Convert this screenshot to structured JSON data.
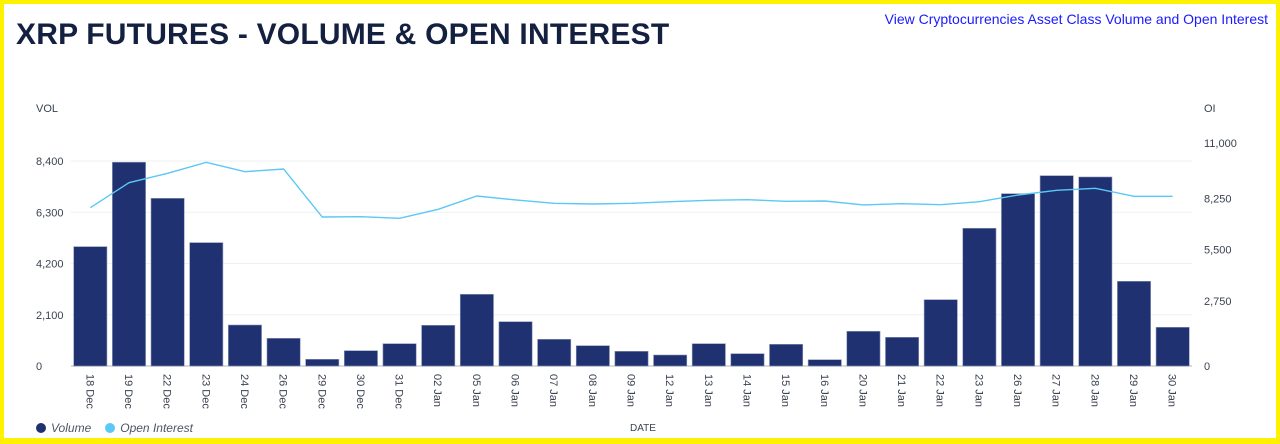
{
  "header": {
    "title": "XRP FUTURES - VOLUME & OPEN INTEREST",
    "link_text": "View Cryptocurrencies Asset Class Volume and Open Interest"
  },
  "colors": {
    "border": "#fff200",
    "volume_bar": "#1f3171",
    "open_interest_line": "#5bc8f5",
    "title": "#13203f",
    "link": "#1a1aff"
  },
  "legend": {
    "volume": "Volume",
    "open_interest": "Open Interest"
  },
  "chart_data": {
    "type": "bar",
    "title": "XRP FUTURES - VOLUME & OPEN INTEREST",
    "xlabel": "DATE",
    "ylabel": "VOL",
    "y2label": "OI",
    "ylim": [
      0,
      8400
    ],
    "y2lim": [
      0,
      11000
    ],
    "yticks": [
      "0",
      "2,100",
      "4,200",
      "6,300",
      "8,400"
    ],
    "y2ticks": [
      "0",
      "2,750",
      "5,500",
      "8,250",
      "11,000"
    ],
    "grid": true,
    "legend_position": "bottom-left",
    "categories": [
      "18 Dec",
      "19 Dec",
      "22 Dec",
      "23 Dec",
      "24 Dec",
      "26 Dec",
      "29 Dec",
      "30 Dec",
      "31 Dec",
      "02 Jan",
      "05 Jan",
      "06 Jan",
      "07 Jan",
      "08 Jan",
      "09 Jan",
      "12 Jan",
      "13 Jan",
      "14 Jan",
      "15 Jan",
      "16 Jan",
      "20 Jan",
      "21 Jan",
      "22 Jan",
      "23 Jan",
      "26 Jan",
      "27 Jan",
      "28 Jan",
      "29 Jan",
      "30 Jan"
    ],
    "series": [
      {
        "name": "Volume",
        "type": "bar",
        "axis": "left",
        "values": [
          4890,
          8350,
          6870,
          5055,
          1680,
          1135,
          275,
          627,
          914,
          1668,
          2938,
          1815,
          1094,
          832,
          602,
          451,
          914,
          504,
          889,
          258,
          1422,
          1176,
          2717,
          5643,
          7061,
          7798,
          7745,
          3471,
          1586
        ]
      },
      {
        "name": "Open Interest",
        "type": "line",
        "axis": "right",
        "values": [
          8494,
          9836,
          10340,
          10930,
          10426,
          10571,
          7995,
          8011,
          7925,
          8407,
          9122,
          8908,
          8729,
          8693,
          8729,
          8818,
          8890,
          8926,
          8836,
          8854,
          8640,
          8711,
          8657,
          8818,
          9176,
          9426,
          9534,
          9104,
          9104
        ]
      }
    ]
  }
}
